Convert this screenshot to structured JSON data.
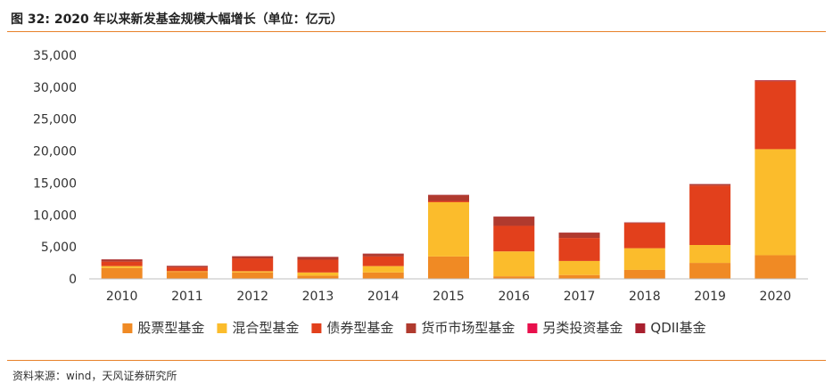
{
  "header": {
    "title": "图 32:   2020 年以来新发基金规模大幅增长（单位：亿元）"
  },
  "footer": {
    "source": "资料来源：wind，天风证券研究所"
  },
  "chart_data": {
    "type": "bar",
    "stacked": true,
    "title": "",
    "xlabel": "",
    "ylabel": "",
    "ylim": [
      0,
      35000
    ],
    "yticks": [
      0,
      5000,
      10000,
      15000,
      20000,
      25000,
      30000,
      35000
    ],
    "ytick_labels": [
      "0",
      "5,000",
      "10,000",
      "15,000",
      "20,000",
      "25,000",
      "30,000",
      "35,000"
    ],
    "grid": false,
    "legend_position": "bottom",
    "categories": [
      "2010",
      "2011",
      "2012",
      "2013",
      "2014",
      "2015",
      "2016",
      "2017",
      "2018",
      "2019",
      "2020"
    ],
    "series": [
      {
        "name": "股票型基金",
        "color": "#f08a24",
        "values": [
          1700,
          1100,
          1000,
          500,
          1000,
          3500,
          400,
          600,
          1400,
          2500,
          3700
        ]
      },
      {
        "name": "混合型基金",
        "color": "#fbbc2c",
        "values": [
          300,
          100,
          200,
          500,
          1000,
          8500,
          3900,
          2200,
          3400,
          2800,
          16600
        ]
      },
      {
        "name": "债券型基金",
        "color": "#e2401c",
        "values": [
          700,
          600,
          2000,
          2000,
          1500,
          200,
          4000,
          3600,
          3900,
          9300,
          10600
        ]
      },
      {
        "name": "货币市场型基金",
        "color": "#b03a2e",
        "values": [
          300,
          200,
          300,
          400,
          400,
          900,
          1400,
          800,
          100,
          200,
          100
        ]
      },
      {
        "name": "另类投资基金",
        "color": "#e8104c",
        "values": [
          0,
          0,
          0,
          0,
          0,
          0,
          0,
          0,
          0,
          0,
          20
        ]
      },
      {
        "name": "QDII基金",
        "color": "#a8202e",
        "values": [
          50,
          50,
          50,
          50,
          50,
          50,
          50,
          50,
          50,
          50,
          80
        ]
      }
    ]
  }
}
